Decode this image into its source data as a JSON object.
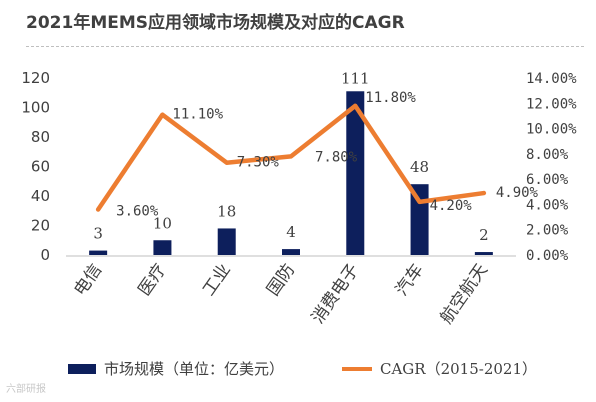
{
  "title": "2021年MEMS应用领域市场规模及对应的CAGR",
  "watermark": "六部研报",
  "colors": {
    "bar": "#0d1f5c",
    "line": "#ed7d31"
  },
  "chart_data": {
    "type": "bar",
    "categories": [
      "电信",
      "医疗",
      "工业",
      "国防",
      "消费电子",
      "汽车",
      "航空航天"
    ],
    "series": [
      {
        "name": "市场规模（单位：亿美元）",
        "type": "bar",
        "axis": "left",
        "values": [
          3,
          10,
          18,
          4,
          111,
          48,
          2
        ],
        "labels": [
          "3",
          "10",
          "18",
          "4",
          "111",
          "48",
          "2"
        ]
      },
      {
        "name": "CAGR（2015-2021）",
        "type": "line",
        "axis": "right",
        "values": [
          3.6,
          11.1,
          7.3,
          7.8,
          11.8,
          4.2,
          4.9
        ],
        "labels": [
          "3.60%",
          "11.10%",
          "7.30%",
          "7.80%",
          "11.80%",
          "4.20%",
          "4.90%"
        ]
      }
    ],
    "left_axis": {
      "ylim": [
        0,
        120
      ],
      "ticks": [
        "0",
        "20",
        "40",
        "60",
        "80",
        "100",
        "120"
      ]
    },
    "right_axis": {
      "ylim": [
        0,
        14
      ],
      "ticks": [
        "0.00%",
        "2.00%",
        "4.00%",
        "6.00%",
        "8.00%",
        "10.00%",
        "12.00%",
        "14.00%"
      ]
    },
    "legend_position": "bottom",
    "grid": false
  }
}
